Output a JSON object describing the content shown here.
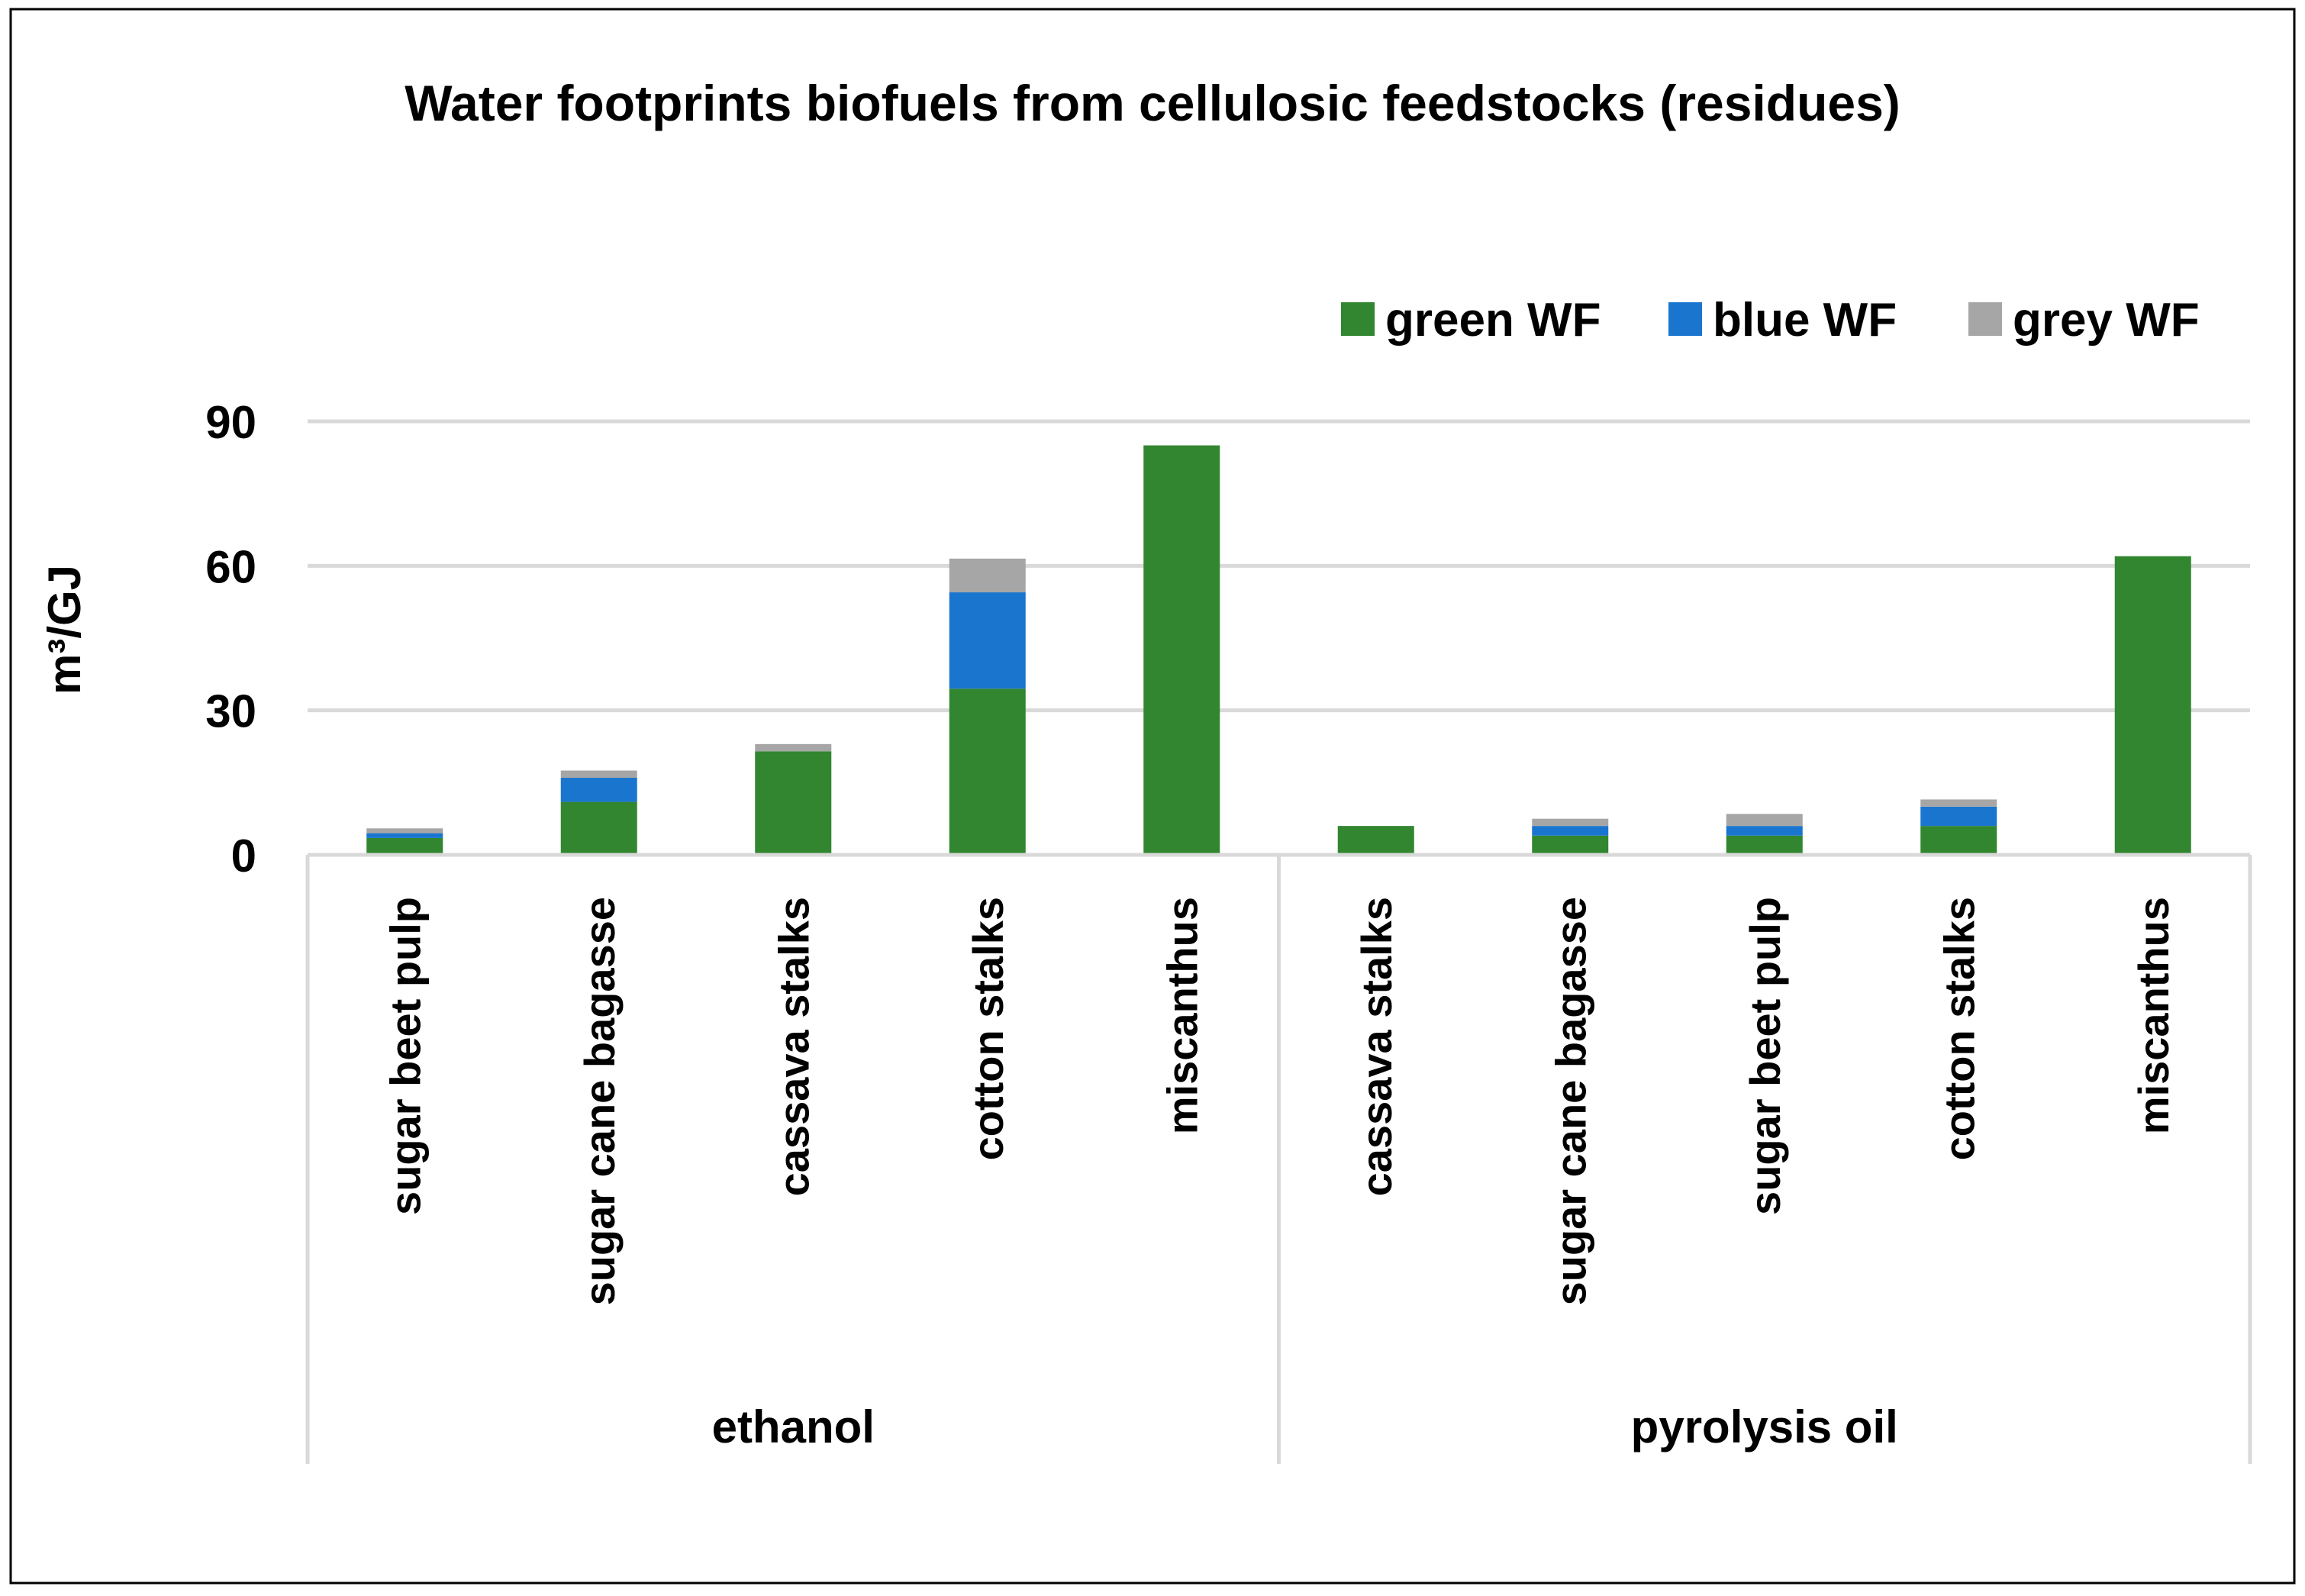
{
  "chart_data": {
    "type": "bar",
    "stacked": true,
    "title": "Water footprints biofuels from cellulosic  feedstocks (residues)",
    "ylabel": "m³/GJ",
    "ylim": [
      0,
      90
    ],
    "yticks": [
      0,
      30,
      60,
      90
    ],
    "grid": true,
    "legend_position": "top-right",
    "groups": [
      {
        "label": "ethanol",
        "categories": [
          "sugar beet pulp",
          "sugar cane bagasse",
          "cassava stalks",
          "cotton stalks",
          "miscanthus"
        ]
      },
      {
        "label": "pyrolysis oil",
        "categories": [
          "cassava stalks",
          "sugar cane bagasse",
          "sugar beet pulp",
          "cotton stalks",
          "miscanthus"
        ]
      }
    ],
    "series": [
      {
        "name": "green WF",
        "color": "#31862f",
        "values": [
          3.5,
          11,
          21.5,
          34.5,
          85,
          6,
          4,
          4,
          6,
          62
        ]
      },
      {
        "name": "blue WF",
        "color": "#1a75cf",
        "values": [
          1,
          5,
          0,
          20,
          0,
          0,
          2,
          2,
          4,
          0
        ]
      },
      {
        "name": "grey WF",
        "color": "#a6a6a6",
        "values": [
          1,
          1.5,
          1.5,
          7,
          0,
          0,
          1.5,
          2.5,
          1.5,
          0
        ]
      }
    ]
  }
}
